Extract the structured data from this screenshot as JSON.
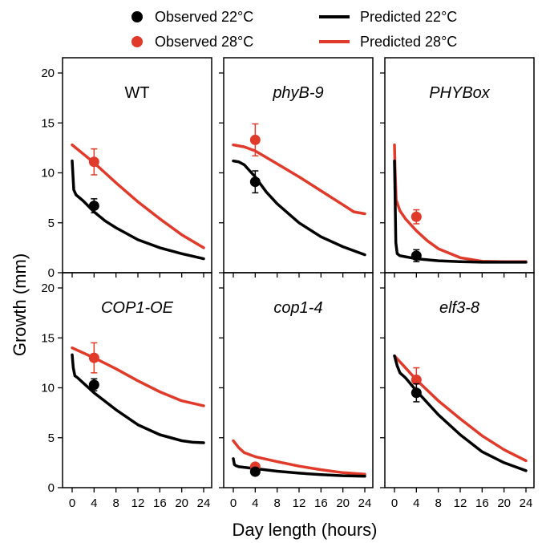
{
  "legend": {
    "items": [
      {
        "label": "Observed 22°C",
        "kind": "observed",
        "color": "#000000"
      },
      {
        "label": "Observed 28°C",
        "kind": "observed",
        "color": "#e03a2a"
      },
      {
        "label": "Predicted 22°C",
        "kind": "predicted",
        "color": "#000000"
      },
      {
        "label": "Predicted 28°C",
        "kind": "predicted",
        "color": "#e03a2a"
      }
    ]
  },
  "colors": {
    "c22": "#000000",
    "c28": "#e03a2a"
  },
  "xlabel": "Day length (hours)",
  "ylabel": "Growth (mm)",
  "chart_data": {
    "type": "line",
    "layout": "2x3 small multiples with shared axes",
    "xlabel": "Day length (hours)",
    "ylabel": "Growth (mm)",
    "xlim": [
      0,
      24
    ],
    "ylim": [
      0,
      20
    ],
    "xticks": [
      "0",
      "4",
      "8",
      "12",
      "16",
      "20",
      "24"
    ],
    "yticks": [
      "0",
      "5",
      "10",
      "15",
      "20"
    ],
    "legend_position": "top",
    "panels": [
      {
        "title": "WT",
        "italic": false,
        "predicted": {
          "22C": {
            "x": [
              0,
              0.3,
              0.7,
              2,
              4,
              6,
              8,
              12,
              16,
              20,
              24
            ],
            "y": [
              11.2,
              8.3,
              7.8,
              7.2,
              6.1,
              5.2,
              4.5,
              3.3,
              2.5,
              1.9,
              1.4
            ]
          },
          "28C": {
            "x": [
              0,
              2,
              4,
              8,
              12,
              16,
              20,
              24
            ],
            "y": [
              12.8,
              11.9,
              11.0,
              9.0,
              7.1,
              5.4,
              3.8,
              2.5
            ]
          }
        },
        "observed": {
          "22C": {
            "x": 4,
            "y": 6.7,
            "err": 0.7
          },
          "28C": {
            "x": 4,
            "y": 11.1,
            "err": 1.3
          }
        }
      },
      {
        "title": "phyB-9",
        "italic": true,
        "predicted": {
          "22C": {
            "x": [
              0,
              1,
              2,
              4,
              6,
              8,
              12,
              16,
              20,
              24
            ],
            "y": [
              11.2,
              11.1,
              10.8,
              9.6,
              8.1,
              6.9,
              5.0,
              3.6,
              2.6,
              1.8
            ]
          },
          "28C": {
            "x": [
              0,
              2,
              4,
              8,
              12,
              16,
              20,
              22,
              24
            ],
            "y": [
              12.8,
              12.6,
              12.2,
              10.9,
              9.6,
              8.2,
              6.8,
              6.1,
              5.9
            ]
          }
        },
        "observed": {
          "22C": {
            "x": 4,
            "y": 9.1,
            "err": 1.1
          },
          "28C": {
            "x": 4,
            "y": 13.3,
            "err": 1.6
          }
        }
      },
      {
        "title": "PHYBox",
        "italic": true,
        "predicted": {
          "22C": {
            "x": [
              0,
              0.1,
              0.25,
              0.5,
              1,
              2,
              4,
              8,
              12,
              16,
              20,
              24
            ],
            "y": [
              11.2,
              8.0,
              3.0,
              1.9,
              1.7,
              1.6,
              1.4,
              1.2,
              1.1,
              1.05,
              1.05,
              1.05
            ]
          },
          "28C": {
            "x": [
              0,
              0.1,
              0.3,
              1,
              2,
              4,
              6,
              8,
              12,
              16,
              20,
              24
            ],
            "y": [
              12.8,
              10.5,
              7.3,
              6.2,
              5.4,
              4.2,
              3.2,
              2.4,
              1.5,
              1.15,
              1.1,
              1.1
            ]
          }
        },
        "observed": {
          "22C": {
            "x": 4,
            "y": 1.7,
            "err": 0.6
          },
          "28C": {
            "x": 4,
            "y": 5.6,
            "err": 0.7
          }
        }
      },
      {
        "title": "COP1-OE",
        "italic": true,
        "predicted": {
          "22C": {
            "x": [
              0,
              0.2,
              0.5,
              1,
              2,
              4,
              8,
              12,
              16,
              20,
              22,
              24
            ],
            "y": [
              13.3,
              12.0,
              11.2,
              11.0,
              10.5,
              9.5,
              7.8,
              6.3,
              5.3,
              4.7,
              4.55,
              4.5
            ]
          },
          "28C": {
            "x": [
              0,
              4,
              8,
              12,
              16,
              20,
              24
            ],
            "y": [
              14.0,
              13.0,
              11.9,
              10.7,
              9.6,
              8.7,
              8.2
            ]
          }
        },
        "observed": {
          "22C": {
            "x": 4,
            "y": 10.3,
            "err": 0.6
          },
          "28C": {
            "x": 4,
            "y": 13.0,
            "err": 1.5
          }
        }
      },
      {
        "title": "cop1-4",
        "italic": true,
        "predicted": {
          "22C": {
            "x": [
              0,
              0.2,
              0.5,
              1,
              4,
              8,
              12,
              16,
              20,
              24
            ],
            "y": [
              2.9,
              2.3,
              2.2,
              2.1,
              1.9,
              1.65,
              1.45,
              1.3,
              1.2,
              1.15
            ]
          },
          "28C": {
            "x": [
              0,
              1,
              2,
              4,
              8,
              12,
              16,
              20,
              24
            ],
            "y": [
              4.7,
              4.0,
              3.5,
              3.1,
              2.6,
              2.15,
              1.8,
              1.5,
              1.35
            ]
          }
        },
        "observed": {
          "22C": {
            "x": 4,
            "y": 1.6,
            "err": 0.3
          },
          "28C": {
            "x": 4,
            "y": 2.1,
            "err": 0.3
          }
        }
      },
      {
        "title": "elf3-8",
        "italic": true,
        "predicted": {
          "22C": {
            "x": [
              0,
              0.5,
              1,
              2,
              4,
              8,
              12,
              16,
              20,
              24
            ],
            "y": [
              13.2,
              12.2,
              11.5,
              11.0,
              9.7,
              7.3,
              5.3,
              3.6,
              2.5,
              1.7
            ]
          },
          "28C": {
            "x": [
              0,
              2,
              4,
              8,
              12,
              16,
              20,
              24
            ],
            "y": [
              13.2,
              12.0,
              10.8,
              8.7,
              6.9,
              5.2,
              3.8,
              2.7
            ]
          }
        },
        "observed": {
          "22C": {
            "x": 4,
            "y": 9.5,
            "err": 0.9
          },
          "28C": {
            "x": 4,
            "y": 10.8,
            "err": 1.2
          }
        }
      }
    ]
  }
}
